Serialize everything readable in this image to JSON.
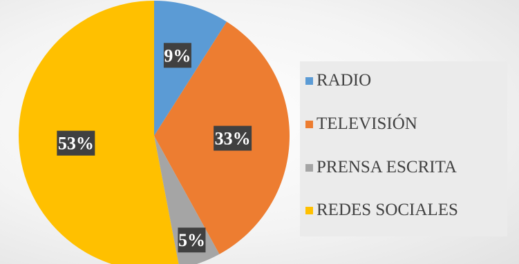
{
  "chart_data": {
    "type": "pie",
    "categories": [
      "RADIO",
      "TELEVISIÓN",
      "PRENSA ESCRITA",
      "REDES SOCIALES"
    ],
    "values": [
      9,
      33,
      5,
      53
    ],
    "data_labels": [
      "9%",
      "33%",
      "5%",
      "53%"
    ],
    "colors": [
      "#5b9bd5",
      "#ed7d31",
      "#a5a5a5",
      "#ffc000"
    ],
    "start_angle": "top (12 o'clock)",
    "direction": "clockwise",
    "legend_placement": "right"
  }
}
